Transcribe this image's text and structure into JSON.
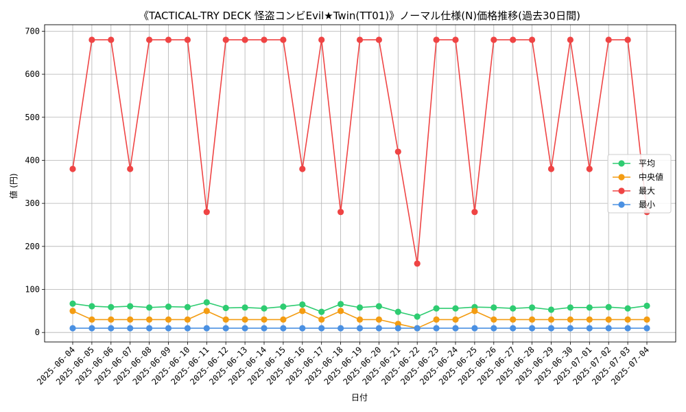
{
  "chart_data": {
    "type": "line",
    "title": "《TACTICAL-TRY DECK 怪盗コンビEvil★Twin(TT01)》ノーマル仕様(N)価格推移(過去30日間)",
    "xlabel": "日付",
    "ylabel": "値 (円)",
    "ylim": [
      -22,
      715
    ],
    "yticks": [
      0,
      100,
      200,
      300,
      400,
      500,
      600,
      700
    ],
    "grid": true,
    "legend_position": "center-right",
    "x": [
      "2025-06-04",
      "2025-06-05",
      "2025-06-06",
      "2025-06-07",
      "2025-06-08",
      "2025-06-09",
      "2025-06-10",
      "2025-06-11",
      "2025-06-12",
      "2025-06-13",
      "2025-06-14",
      "2025-06-15",
      "2025-06-16",
      "2025-06-17",
      "2025-06-18",
      "2025-06-19",
      "2025-06-20",
      "2025-06-21",
      "2025-06-22",
      "2025-06-23",
      "2025-06-24",
      "2025-06-25",
      "2025-06-26",
      "2025-06-27",
      "2025-06-28",
      "2025-06-29",
      "2025-06-30",
      "2025-07-01",
      "2025-07-02",
      "2025-07-03",
      "2025-07-04"
    ],
    "series": [
      {
        "name": "平均",
        "color": "#2ecc71",
        "values": [
          67,
          61,
          59,
          61,
          58,
          60,
          59,
          70,
          57,
          58,
          56,
          60,
          65,
          48,
          66,
          58,
          61,
          48,
          37,
          56,
          56,
          59,
          58,
          56,
          58,
          53,
          58,
          58,
          59,
          56,
          62
        ]
      },
      {
        "name": "中央値",
        "color": "#f39c12",
        "values": [
          50,
          30,
          30,
          30,
          30,
          30,
          30,
          50,
          30,
          30,
          30,
          30,
          50,
          30,
          50,
          30,
          30,
          20,
          10,
          30,
          30,
          50,
          30,
          30,
          30,
          30,
          30,
          30,
          30,
          30,
          30
        ]
      },
      {
        "name": "最大",
        "color": "#ef4444",
        "values": [
          380,
          680,
          680,
          380,
          680,
          680,
          680,
          280,
          680,
          680,
          680,
          680,
          380,
          680,
          280,
          680,
          680,
          420,
          160,
          680,
          680,
          280,
          680,
          680,
          680,
          380,
          680,
          380,
          680,
          680,
          280
        ]
      },
      {
        "name": "最小",
        "color": "#4a90e2",
        "values": [
          10,
          10,
          10,
          10,
          10,
          10,
          10,
          10,
          10,
          10,
          10,
          10,
          10,
          10,
          10,
          10,
          10,
          10,
          10,
          10,
          10,
          10,
          10,
          10,
          10,
          10,
          10,
          10,
          10,
          10,
          10
        ]
      }
    ]
  }
}
